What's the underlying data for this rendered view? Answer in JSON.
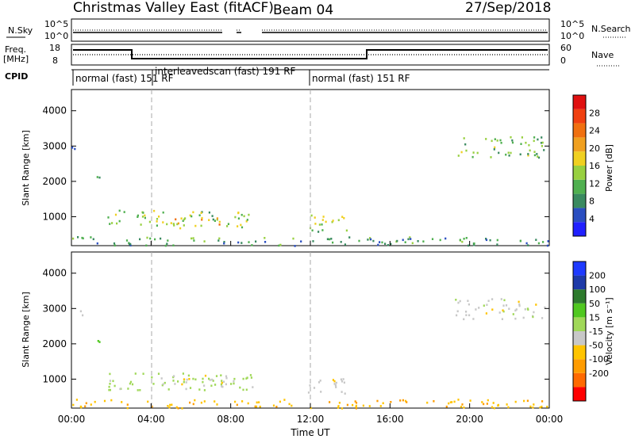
{
  "header": {
    "title": "Christmas Valley East (fitACF)",
    "beam": "Beam 04",
    "date": "27/Sep/2018"
  },
  "left_labels": {
    "nsky": "N.Sky",
    "freq_line1": "Freq.",
    "freq_line2": "[MHz]",
    "cpid": "CPID"
  },
  "right_labels": {
    "nsearch": "N.Search",
    "nave": "Nave"
  },
  "noise_axis": {
    "top": "10^5",
    "bottom": "10^0"
  },
  "freq_axis": {
    "top": "18",
    "bottom": "8"
  },
  "nave_axis": {
    "top": "60",
    "bottom": "0"
  },
  "cpid_segments": [
    "normal (fast)  151 RF",
    "interleavedscan (fast)  191 RF",
    "normal (fast)  151 RF"
  ],
  "colors": {
    "power_scale": [
      "#2020ff",
      "#2a4ec0",
      "#3a8a60",
      "#50b050",
      "#98d040",
      "#f0d020",
      "#f0a020",
      "#f07010",
      "#f04010",
      "#e01010"
    ],
    "velocity_scale": [
      "#ff0000",
      "#ff6a00",
      "#ff9c00",
      "#ffc400",
      "#c8c8c8",
      "#a0d858",
      "#50c820",
      "#2d7a2d",
      "#1e3aa8",
      "#1e3aff"
    ]
  },
  "chart_data": [
    {
      "type": "heatmap",
      "name": "power",
      "x_ticks": [
        "00:00",
        "04:00",
        "08:00",
        "12:00",
        "16:00",
        "20:00",
        "00:00"
      ],
      "y_ticks": [
        "1000",
        "2000",
        "3000",
        "4000"
      ],
      "ylabel": "Slant Range [km]",
      "ylim": [
        180,
        4600
      ],
      "xlim_hours": [
        0,
        24
      ],
      "colorbar_label": "Power [dB]",
      "colorbar_ticks": [
        "4",
        "8",
        "12",
        "16",
        "20",
        "24",
        "28"
      ],
      "colorbar_range": [
        0,
        32
      ],
      "echo_regions": [
        {
          "t0": 0.0,
          "t1": 0.6,
          "r0": 2800,
          "r1": 3000,
          "value_db": 6
        },
        {
          "t0": 1.1,
          "t1": 1.6,
          "r0": 2000,
          "r1": 2200,
          "value_db": 8
        },
        {
          "t0": 1.8,
          "t1": 9.2,
          "r0": 700,
          "r1": 1200,
          "value_db": 14
        },
        {
          "t0": 5.0,
          "t1": 7.5,
          "r0": 800,
          "r1": 1000,
          "value_db": 20
        },
        {
          "t0": 11.7,
          "t1": 13.8,
          "r0": 600,
          "r1": 1100,
          "value_db": 14
        },
        {
          "t0": 19.2,
          "t1": 23.8,
          "r0": 2700,
          "r1": 3300,
          "value_db": 12
        },
        {
          "t0": 0.0,
          "t1": 24.0,
          "r0": 200,
          "r1": 450,
          "value_db": 10
        }
      ]
    },
    {
      "type": "heatmap",
      "name": "velocity",
      "x_ticks": [
        "00:00",
        "04:00",
        "08:00",
        "12:00",
        "16:00",
        "20:00",
        "00:00"
      ],
      "y_ticks": [
        "1000",
        "2000",
        "3000",
        "4000"
      ],
      "ylabel": "Slant Range [km]",
      "xlabel": "Time UT",
      "ylim": [
        180,
        4600
      ],
      "xlim_hours": [
        0,
        24
      ],
      "colorbar_label": "Velocity [m s⁻¹]",
      "colorbar_ticks": [
        "200",
        "100",
        "50",
        "15",
        "-15",
        "-50",
        "-100",
        "-200"
      ],
      "echo_regions": [
        {
          "t0": 0.0,
          "t1": 0.6,
          "r0": 2800,
          "r1": 3000,
          "value_ms": 0
        },
        {
          "t0": 1.1,
          "t1": 1.6,
          "r0": 2000,
          "r1": 2200,
          "value_ms": 60
        },
        {
          "t0": 1.8,
          "t1": 9.2,
          "r0": 700,
          "r1": 1200,
          "value_ms": 30
        },
        {
          "t0": 5.0,
          "t1": 8.0,
          "r0": 800,
          "r1": 1150,
          "value_ms": 0
        },
        {
          "t0": 11.7,
          "t1": 13.8,
          "r0": 600,
          "r1": 1100,
          "value_ms": 0
        },
        {
          "t0": 19.2,
          "t1": 23.8,
          "r0": 2700,
          "r1": 3300,
          "value_ms": 0
        },
        {
          "t0": 0.0,
          "t1": 24.0,
          "r0": 200,
          "r1": 450,
          "value_ms": -40
        }
      ]
    }
  ]
}
